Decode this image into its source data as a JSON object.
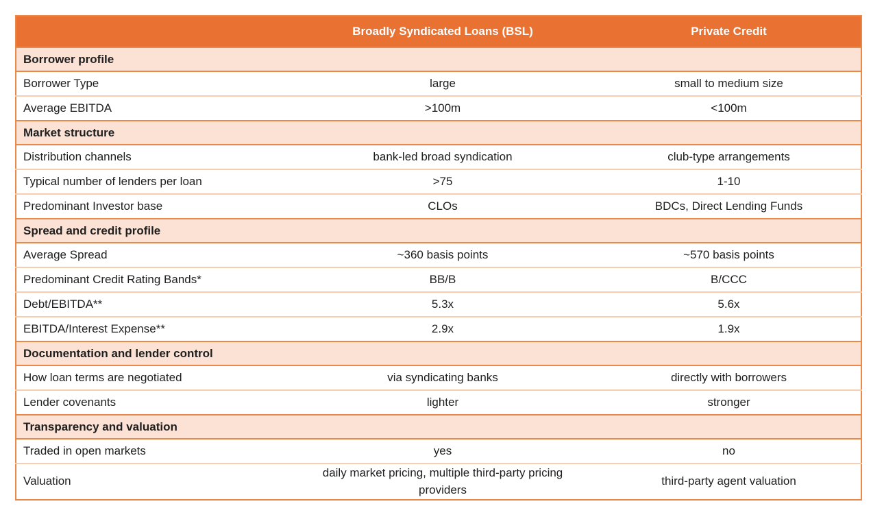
{
  "colors": {
    "header_bg": "#E97132",
    "header_text": "#FFFFFF",
    "section_bg": "#FBE2D5",
    "border_strong": "#ED8747",
    "border_light": "#F8CDAE",
    "text": "#1F1F1F"
  },
  "chart_data": {
    "type": "table",
    "columns": [
      "",
      "Broadly Syndicated Loans (BSL)",
      "Private Credit"
    ],
    "sections": [
      {
        "title": "Borrower profile",
        "rows": [
          {
            "label": "Borrower Type",
            "bsl": "large",
            "pc": "small to medium size"
          },
          {
            "label": "Average EBITDA",
            "bsl": ">100m",
            "pc": "<100m"
          }
        ]
      },
      {
        "title": "Market structure",
        "rows": [
          {
            "label": "Distribution channels",
            "bsl": "bank-led broad syndication",
            "pc": "club-type arrangements"
          },
          {
            "label": "Typical number of lenders per loan",
            "bsl": ">75",
            "pc": "1-10"
          },
          {
            "label": "Predominant Investor base",
            "bsl": "CLOs",
            "pc": "BDCs, Direct Lending Funds"
          }
        ]
      },
      {
        "title": "Spread and credit profile",
        "rows": [
          {
            "label": "Average Spread",
            "bsl": "~360 basis points",
            "pc": "~570 basis points"
          },
          {
            "label": "Predominant Credit Rating Bands*",
            "bsl": "BB/B",
            "pc": "B/CCC"
          },
          {
            "label": "Debt/EBITDA**",
            "bsl": "5.3x",
            "pc": "5.6x"
          },
          {
            "label": "EBITDA/Interest Expense**",
            "bsl": "2.9x",
            "pc": "1.9x"
          }
        ]
      },
      {
        "title": "Documentation and lender control",
        "rows": [
          {
            "label": "How loan terms are negotiated",
            "bsl": "via syndicating banks",
            "pc": "directly with borrowers"
          },
          {
            "label": "Lender covenants",
            "bsl": "lighter",
            "pc": "stronger"
          }
        ]
      },
      {
        "title": "Transparency and valuation",
        "rows": [
          {
            "label": "Traded in open markets",
            "bsl": "yes",
            "pc": "no"
          },
          {
            "label": "Valuation",
            "bsl": "daily market pricing, multiple third-party pricing providers",
            "pc": "third-party agent valuation"
          }
        ]
      }
    ]
  }
}
